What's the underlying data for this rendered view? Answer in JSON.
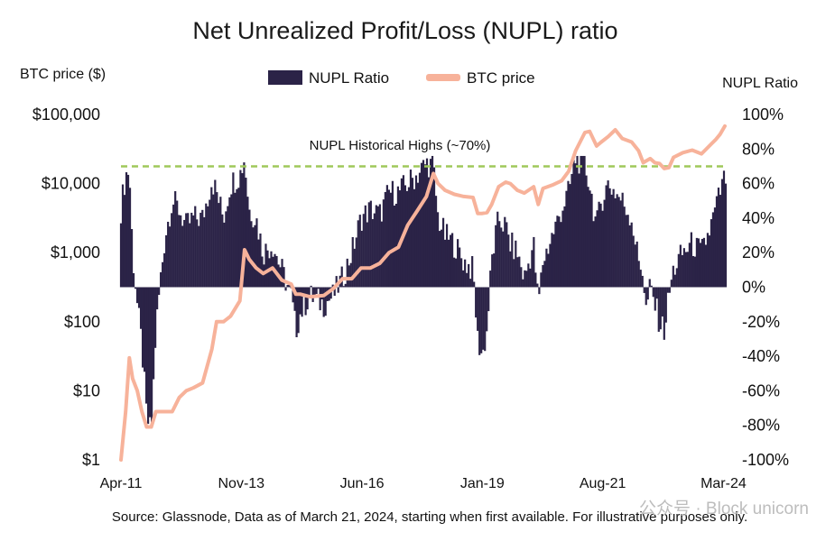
{
  "chart_data": {
    "type": "area+line",
    "title": "Net Unrealized Profit/Loss (NUPL) ratio",
    "left_axis_label": "BTC price ($)",
    "right_axis_label": "NUPL Ratio",
    "left_scale": "log",
    "left_ylim": [
      1,
      100000
    ],
    "left_ticks": [
      "$1",
      "$10",
      "$100",
      "$1,000",
      "$10,000",
      "$100,000"
    ],
    "left_tick_values": [
      1,
      10,
      100,
      1000,
      10000,
      100000
    ],
    "right_ylim": [
      -100,
      100
    ],
    "right_ticks": [
      "-100%",
      "-80%",
      "-60%",
      "-40%",
      "-20%",
      "0%",
      "20%",
      "40%",
      "60%",
      "80%",
      "100%"
    ],
    "right_tick_values": [
      -100,
      -80,
      -60,
      -40,
      -20,
      0,
      20,
      40,
      60,
      80,
      100
    ],
    "x_ticks": [
      "Apr-11",
      "Nov-13",
      "Jun-16",
      "Jan-19",
      "Aug-21",
      "Mar-24"
    ],
    "x_tick_values": [
      2011.25,
      2013.83,
      2016.42,
      2019.0,
      2021.58,
      2024.17
    ],
    "xlim": [
      2011.25,
      2024.22
    ],
    "legend": [
      {
        "name": "NUPL Ratio",
        "color": "#2b2347"
      },
      {
        "name": "BTC price",
        "color": "#f7b29a"
      }
    ],
    "reference_line": {
      "label": "NUPL Historical Highs (~70%)",
      "value": 70,
      "color": "#9fc85a"
    },
    "series": [
      {
        "name": "NUPL Ratio",
        "unit": "percent",
        "x": [
          2011.25,
          2011.35,
          2011.43,
          2011.5,
          2011.6,
          2011.7,
          2011.8,
          2011.9,
          2012.0,
          2012.1,
          2012.2,
          2012.35,
          2012.5,
          2012.65,
          2012.8,
          2013.0,
          2013.2,
          2013.3,
          2013.45,
          2013.6,
          2013.8,
          2013.9,
          2014.0,
          2014.15,
          2014.3,
          2014.5,
          2014.7,
          2014.9,
          2015.0,
          2015.1,
          2015.3,
          2015.6,
          2015.8,
          2016.0,
          2016.2,
          2016.4,
          2016.6,
          2016.8,
          2017.0,
          2017.2,
          2017.4,
          2017.6,
          2017.8,
          2017.95,
          2018.05,
          2018.2,
          2018.4,
          2018.6,
          2018.8,
          2018.9,
          2019.0,
          2019.1,
          2019.2,
          2019.35,
          2019.5,
          2019.6,
          2019.75,
          2019.9,
          2020.1,
          2020.2,
          2020.3,
          2020.5,
          2020.7,
          2020.85,
          2021.0,
          2021.2,
          2021.3,
          2021.45,
          2021.55,
          2021.7,
          2021.85,
          2022.0,
          2022.2,
          2022.35,
          2022.45,
          2022.5,
          2022.6,
          2022.7,
          2022.8,
          2022.9,
          2023.0,
          2023.1,
          2023.3,
          2023.5,
          2023.7,
          2023.9,
          2024.0,
          2024.1,
          2024.2
        ],
        "y": [
          45,
          65,
          68,
          20,
          -10,
          -35,
          -75,
          -85,
          -25,
          5,
          30,
          50,
          45,
          35,
          40,
          40,
          62,
          55,
          40,
          60,
          65,
          75,
          45,
          40,
          20,
          25,
          10,
          -5,
          -25,
          -15,
          -5,
          -10,
          -5,
          5,
          20,
          40,
          45,
          42,
          55,
          55,
          60,
          65,
          72,
          70,
          40,
          30,
          25,
          15,
          10,
          -30,
          -40,
          -25,
          15,
          40,
          35,
          25,
          20,
          5,
          25,
          -10,
          15,
          30,
          45,
          55,
          75,
          70,
          60,
          35,
          50,
          60,
          55,
          50,
          40,
          15,
          10,
          -15,
          0,
          -10,
          -20,
          -25,
          -5,
          10,
          20,
          25,
          20,
          35,
          45,
          55,
          63
        ]
      },
      {
        "name": "BTC price",
        "unit": "USD",
        "x": [
          2011.25,
          2011.35,
          2011.43,
          2011.5,
          2011.6,
          2011.7,
          2011.8,
          2011.9,
          2012.0,
          2012.1,
          2012.2,
          2012.35,
          2012.5,
          2012.65,
          2012.8,
          2013.0,
          2013.2,
          2013.3,
          2013.45,
          2013.6,
          2013.8,
          2013.9,
          2014.0,
          2014.15,
          2014.3,
          2014.5,
          2014.7,
          2014.9,
          2015.0,
          2015.1,
          2015.3,
          2015.6,
          2015.8,
          2016.0,
          2016.2,
          2016.4,
          2016.6,
          2016.8,
          2017.0,
          2017.2,
          2017.4,
          2017.6,
          2017.8,
          2017.95,
          2018.05,
          2018.2,
          2018.4,
          2018.6,
          2018.8,
          2018.9,
          2019.0,
          2019.1,
          2019.2,
          2019.35,
          2019.5,
          2019.6,
          2019.75,
          2019.9,
          2020.1,
          2020.2,
          2020.3,
          2020.5,
          2020.7,
          2020.85,
          2021.0,
          2021.2,
          2021.3,
          2021.45,
          2021.55,
          2021.7,
          2021.85,
          2022.0,
          2022.2,
          2022.35,
          2022.45,
          2022.5,
          2022.6,
          2022.7,
          2022.8,
          2022.9,
          2023.0,
          2023.1,
          2023.3,
          2023.5,
          2023.7,
          2023.9,
          2024.0,
          2024.1,
          2024.2
        ],
        "y": [
          1,
          5,
          30,
          15,
          10,
          5,
          3,
          3,
          5,
          5,
          5,
          5,
          8,
          10,
          11,
          13,
          40,
          100,
          100,
          120,
          200,
          1100,
          800,
          600,
          500,
          600,
          400,
          350,
          250,
          250,
          230,
          240,
          300,
          420,
          420,
          600,
          600,
          700,
          1000,
          1200,
          2500,
          4000,
          6500,
          14000,
          10000,
          8000,
          7000,
          6500,
          6300,
          3700,
          3700,
          3800,
          5000,
          9000,
          10500,
          10000,
          8000,
          7300,
          9000,
          5000,
          8500,
          9500,
          11000,
          15000,
          30000,
          55000,
          57000,
          35000,
          40000,
          48000,
          60000,
          45000,
          40000,
          30000,
          20000,
          21000,
          23000,
          20000,
          19500,
          16500,
          17000,
          24000,
          28000,
          30500,
          27000,
          37000,
          43000,
          52000,
          68000
        ]
      }
    ],
    "source_text": "Source: Glassnode, Data as of March 21, 2024, starting when first available. For illustrative purposes only.",
    "watermark_text": "公众号 · Block unicorn"
  }
}
